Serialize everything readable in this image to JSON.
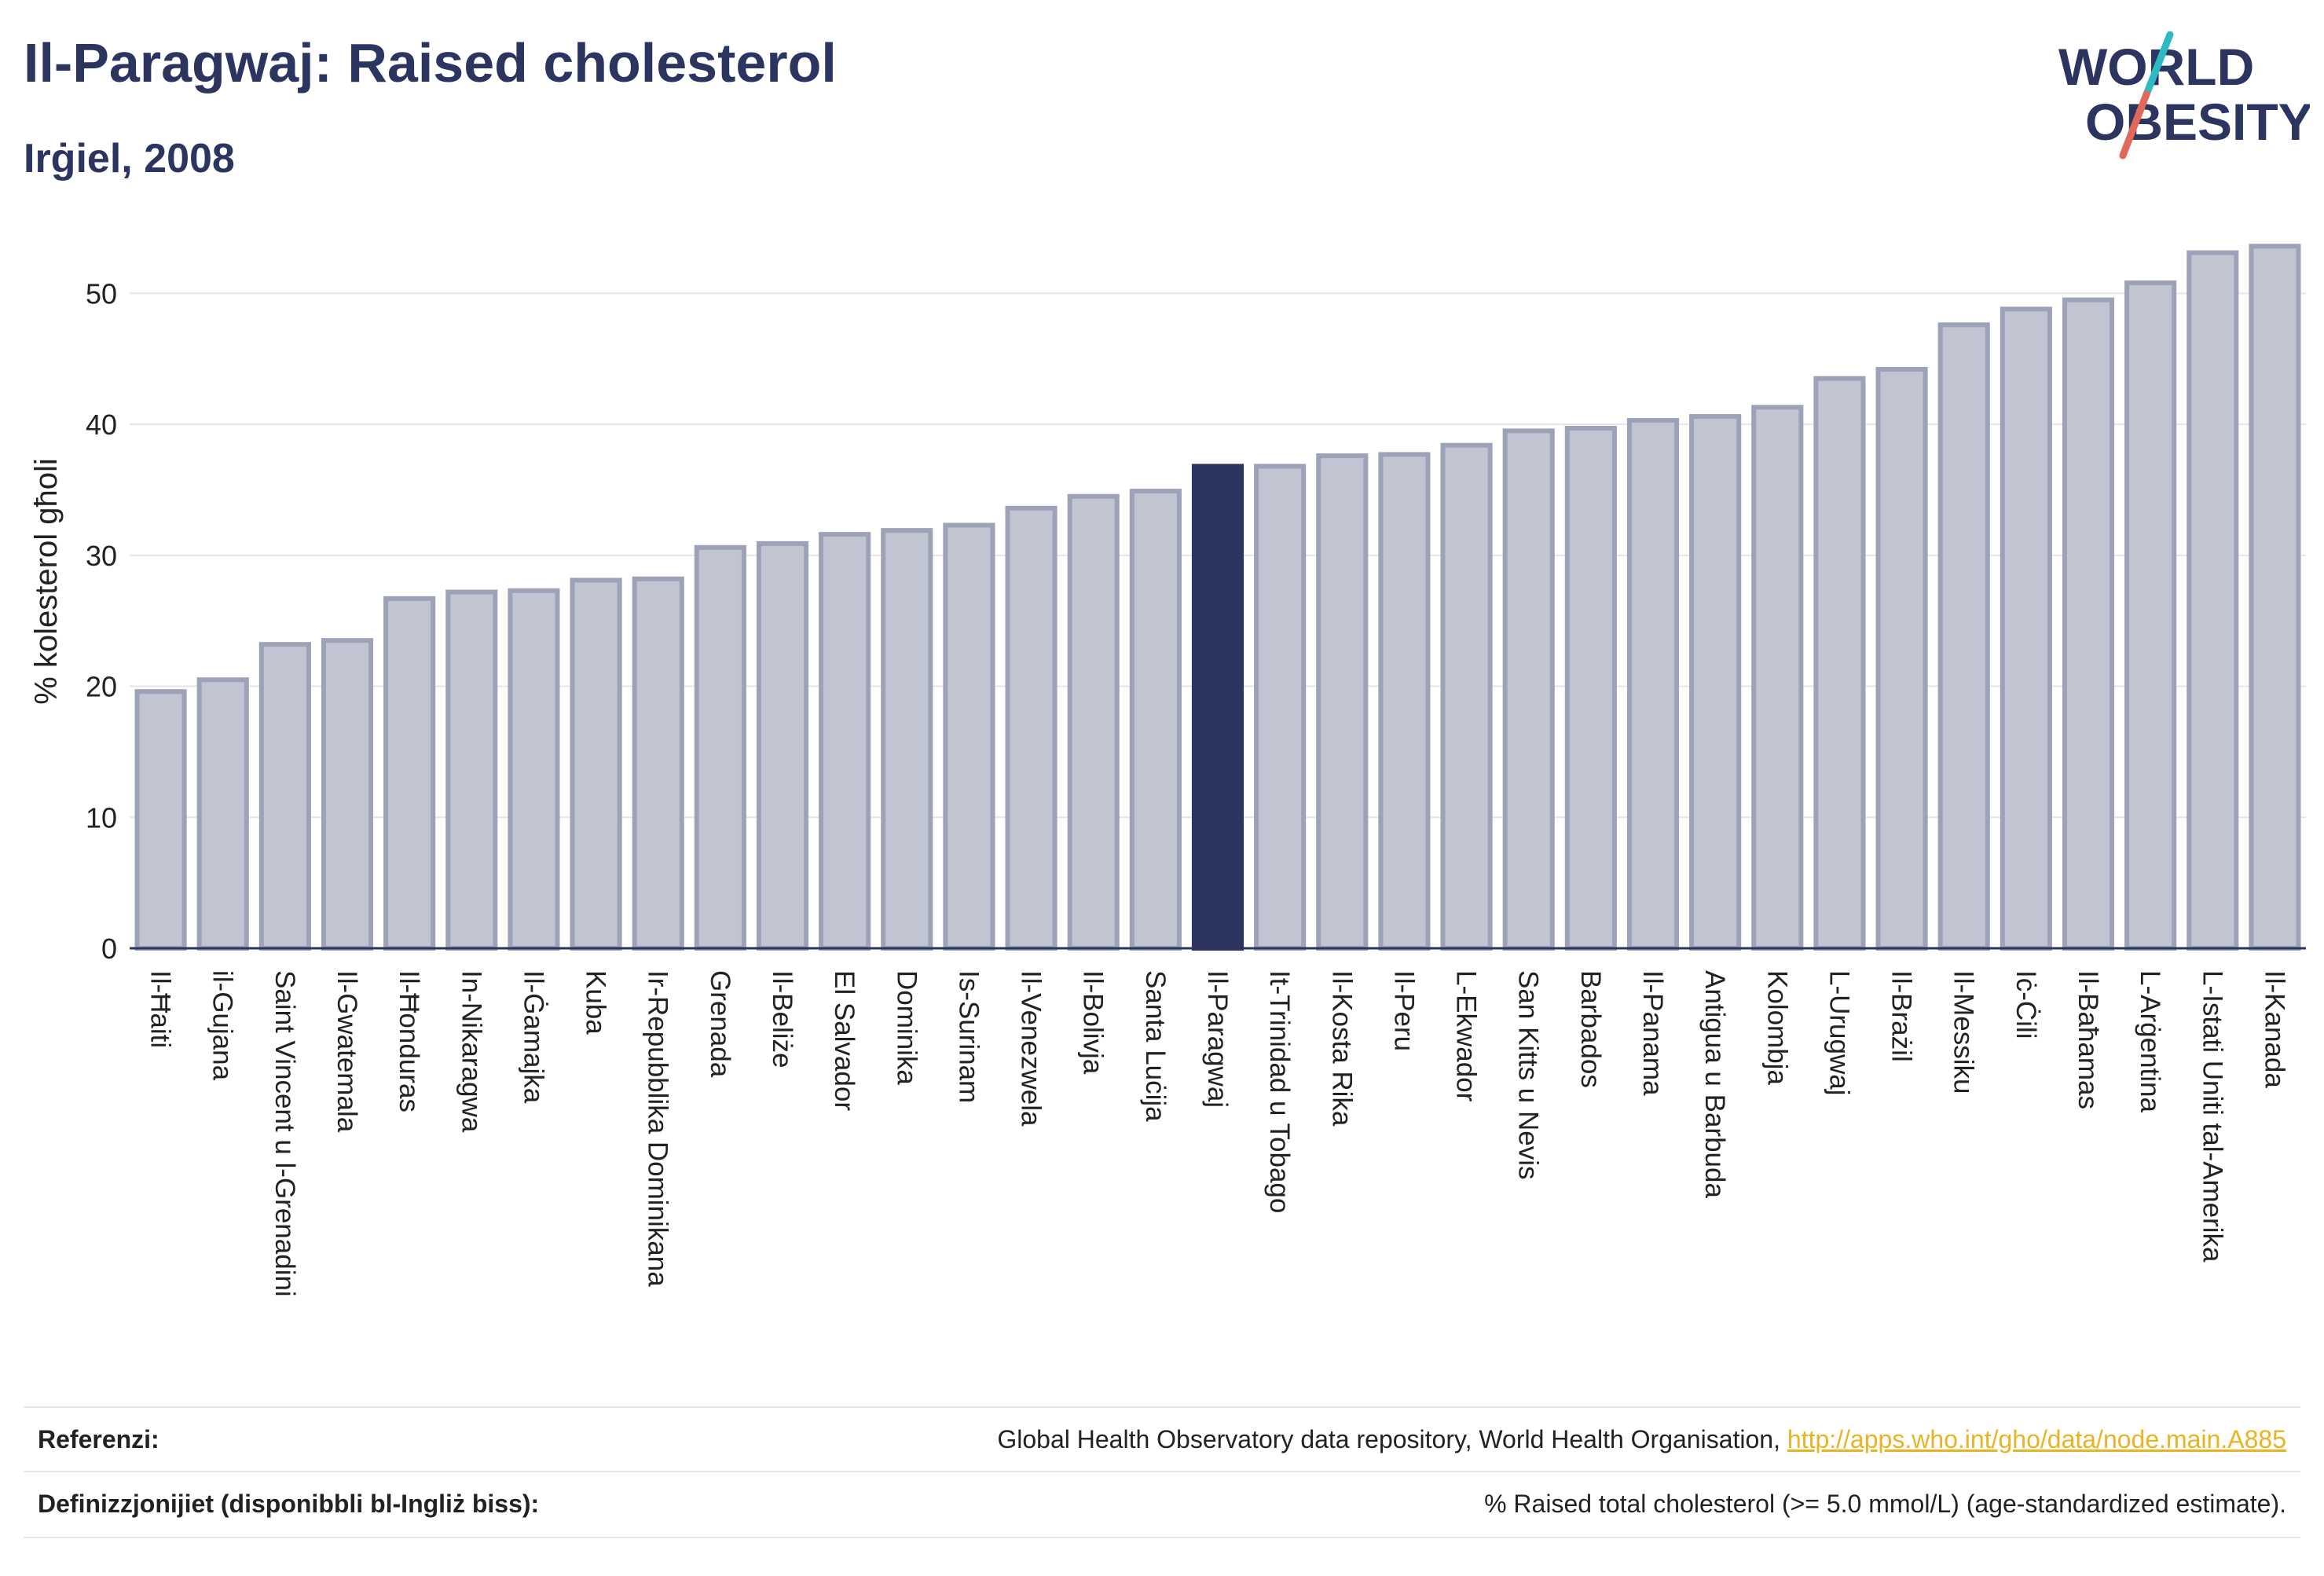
{
  "header": {
    "title": "Il-Paragwaj: Raised cholesterol",
    "subtitle": "Irġiel, 2008"
  },
  "logo": {
    "line1": "WORLD",
    "line2": "OBESITY"
  },
  "chart_data": {
    "type": "bar",
    "ylabel": "% kolesterol għoli",
    "xlabel": "",
    "ylim": [
      0,
      55
    ],
    "yticks": [
      0,
      10,
      20,
      30,
      40,
      50
    ],
    "grid": true,
    "highlight": "Il-Paragwaj",
    "categories": [
      "Il-Ħaiti",
      "il-Gujana",
      "Saint Vincent u l-Grenadini",
      "Il-Gwatemala",
      "Il-Ħonduras",
      "In-Nikaragwa",
      "Il-Ġamajka",
      "Kuba",
      "Ir-Repubblika Dominikana",
      "Grenada",
      "Il-Beliże",
      "El Salvador",
      "Dominika",
      "Is-Surinam",
      "Il-Venezwela",
      "Il-Bolivja",
      "Santa Luċija",
      "Il-Paragwaj",
      "It-Trinidad u Tobago",
      "Il-Kosta Rika",
      "Il-Peru",
      "L-Ekwador",
      "San Kitts u Nevis",
      "Barbados",
      "Il-Panama",
      "Antigua u Barbuda",
      "Kolombja",
      "L-Urugwaj",
      "Il-Brażil",
      "Il-Messiku",
      "Iċ-Ċili",
      "Il-Baħamas",
      "L-Arġentina",
      "L-Istati Uniti tal-Amerika",
      "Il-Kanada"
    ],
    "values": [
      19.6,
      20.5,
      23.2,
      23.5,
      26.7,
      27.2,
      27.3,
      28.1,
      28.2,
      30.6,
      30.9,
      31.6,
      31.9,
      32.3,
      33.6,
      34.5,
      34.9,
      36.8,
      36.8,
      37.6,
      37.7,
      38.4,
      39.5,
      39.7,
      40.3,
      40.6,
      41.3,
      43.5,
      44.2,
      47.6,
      48.8,
      49.5,
      50.8,
      53.1,
      53.6
    ],
    "colors": {
      "bar": "#c1c4d1",
      "bar_border": "#9da2b8",
      "highlight": "#2b3560",
      "grid": "#e6e6e6",
      "axis": "#2b3560"
    }
  },
  "footer": {
    "sources_label": "Referenzi:",
    "sources_text": "Global Health Observatory data repository, World Health Organisation, ",
    "sources_link": "http://apps.who.int/gho/data/node.main.A885",
    "definitions_label": "Definizzjonijiet (disponibbli bl-Ingliż biss):",
    "definitions_text": "% Raised total cholesterol (>= 5.0 mmol/L) (age-standardized estimate)."
  }
}
